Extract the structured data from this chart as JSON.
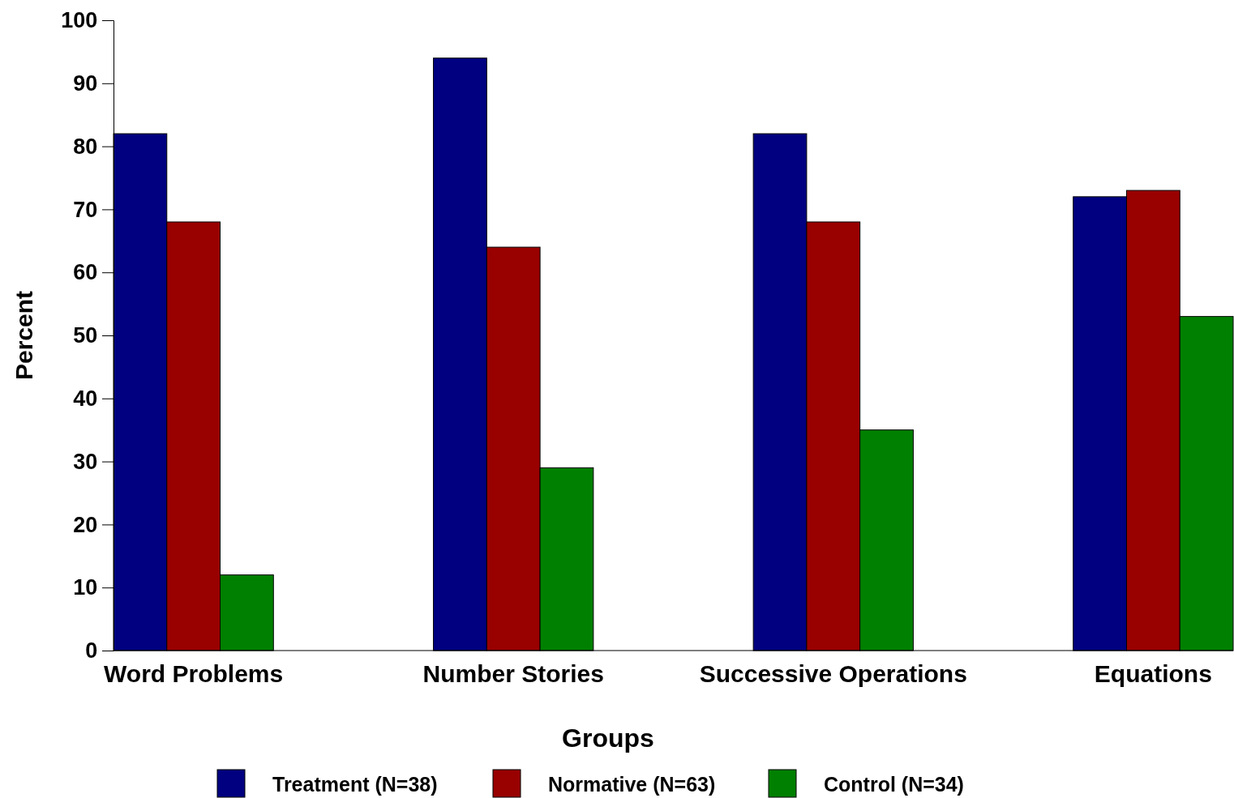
{
  "chart_data": {
    "type": "bar",
    "xlabel": "Groups",
    "ylabel": "Percent",
    "categories": [
      "Word Problems",
      "Number Stories",
      "Successive Operations",
      "Equations"
    ],
    "series": [
      {
        "name": "Treatment (N=38)",
        "color": "#000080",
        "values": [
          82,
          94,
          82,
          72
        ]
      },
      {
        "name": "Normative (N=63)",
        "color": "#990000",
        "values": [
          68,
          64,
          68,
          73
        ]
      },
      {
        "name": "Control (N=34)",
        "color": "#008000",
        "values": [
          12,
          29,
          35,
          53
        ]
      }
    ],
    "ylim": [
      0,
      100
    ],
    "yticks": [
      0,
      10,
      20,
      30,
      40,
      50,
      60,
      70,
      80,
      90,
      100
    ],
    "grid": false,
    "legend": "bottom"
  }
}
